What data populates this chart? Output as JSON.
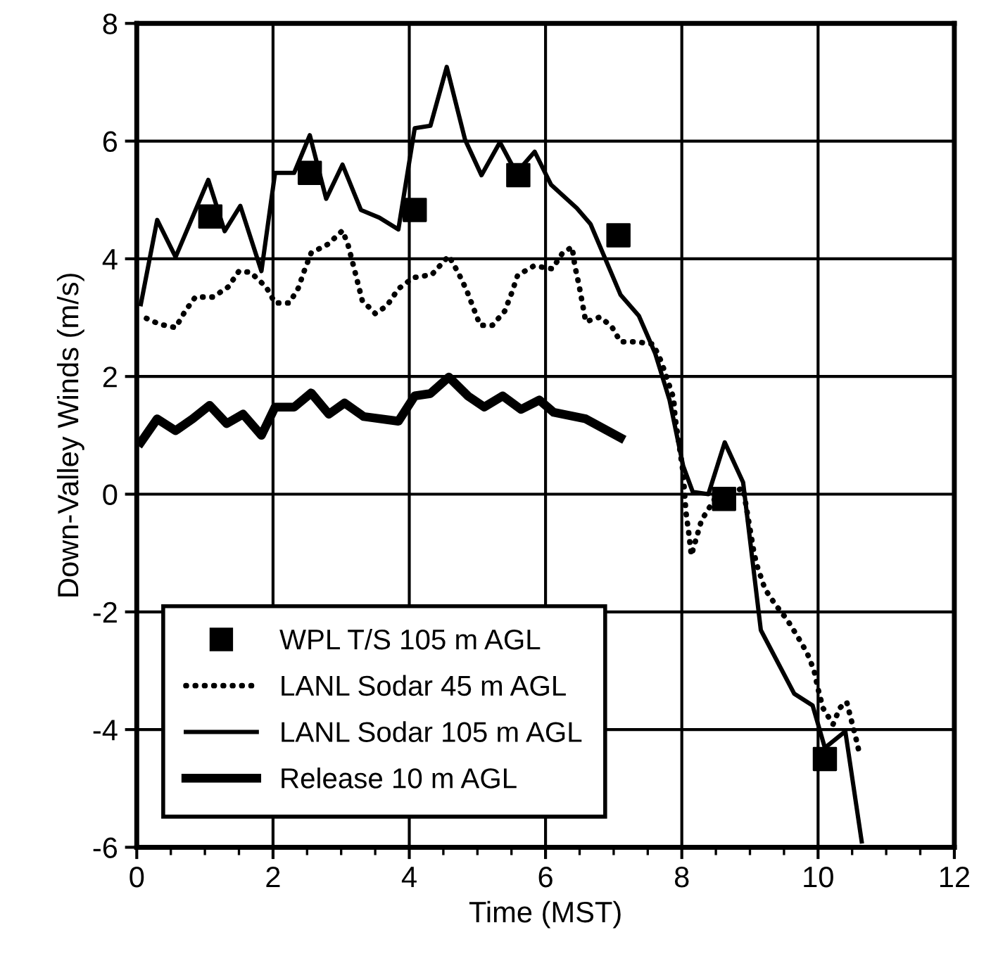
{
  "chart_data": {
    "type": "line",
    "xlabel": "Time (MST)",
    "ylabel": "Down-Valley Winds (m/s)",
    "xlim": [
      0,
      12
    ],
    "ylim": [
      -6,
      8
    ],
    "xticks": [
      0,
      {
        "value": 0.5,
        "label": null
      },
      2,
      {
        "value": 1,
        "label": null
      },
      {
        "value": 1.5,
        "label": null
      },
      {
        "value": 2.5,
        "label": null
      },
      {
        "value": 3,
        "label": null
      },
      {
        "value": 3.5,
        "label": null
      },
      4,
      {
        "value": 4.5,
        "label": null
      },
      {
        "value": 5,
        "label": null
      },
      {
        "value": 5.5,
        "label": null
      },
      6,
      {
        "value": 6.5,
        "label": null
      },
      {
        "value": 7,
        "label": null
      },
      {
        "value": 7.5,
        "label": null
      },
      8,
      {
        "value": 8.5,
        "label": null
      },
      {
        "value": 9,
        "label": null
      },
      {
        "value": 9.5,
        "label": null
      },
      10,
      {
        "value": 10.5,
        "label": null
      },
      {
        "value": 11,
        "label": null
      },
      {
        "value": 11.5,
        "label": null
      },
      12
    ],
    "yticks": [
      -6,
      -4,
      -2,
      0,
      2,
      4,
      6,
      8
    ],
    "grid": true,
    "legend": "bottom left",
    "series": [
      {
        "name": "WPL T/S 105 m AGL",
        "type": "scatter",
        "marker": "square",
        "color": "#000000",
        "x": [
          1.08,
          2.54,
          4.08,
          5.6,
          7.07,
          8.62,
          10.1
        ],
        "values": [
          4.72,
          5.46,
          4.83,
          5.42,
          4.4,
          -0.08,
          -4.5
        ]
      },
      {
        "name": "LANL Sodar 45 m AGL",
        "line_style": "dotted",
        "color": "#000000",
        "x": [
          0.06,
          0.33,
          0.57,
          0.71,
          0.86,
          1.12,
          1.34,
          1.5,
          1.67,
          1.9,
          2.03,
          2.24,
          2.37,
          2.46,
          2.56,
          2.81,
          3.02,
          3.1,
          3.17,
          3.24,
          3.31,
          3.5,
          3.67,
          3.84,
          4.06,
          4.33,
          4.58,
          4.72,
          4.84,
          4.94,
          5.04,
          5.22,
          5.4,
          5.5,
          5.59,
          5.83,
          6.1,
          6.25,
          6.39,
          6.43,
          6.49,
          6.54,
          6.59,
          6.8,
          6.97,
          7.1,
          7.33,
          7.58,
          7.7,
          7.88,
          7.9,
          8.02,
          8.06,
          8.1,
          8.14,
          8.21,
          8.29,
          8.5,
          8.9,
          9.06,
          9.1,
          9.22,
          9.37,
          9.55,
          9.7,
          9.84,
          9.94,
          10.0,
          10.07,
          10.22,
          10.32,
          10.42,
          10.49,
          10.55,
          10.62
        ],
        "values": [
          3.03,
          2.89,
          2.83,
          3.11,
          3.35,
          3.35,
          3.52,
          3.79,
          3.77,
          3.52,
          3.25,
          3.25,
          3.5,
          3.8,
          4.1,
          4.25,
          4.48,
          4.24,
          3.93,
          3.61,
          3.29,
          3.07,
          3.2,
          3.49,
          3.68,
          3.73,
          4.05,
          3.76,
          3.47,
          3.17,
          2.87,
          2.87,
          3.11,
          3.41,
          3.72,
          3.88,
          3.83,
          4.1,
          4.2,
          3.88,
          3.56,
          3.25,
          2.93,
          3.01,
          2.85,
          2.59,
          2.59,
          2.55,
          2.25,
          1.63,
          1.32,
          0.36,
          -0.3,
          -0.64,
          -1.04,
          -0.76,
          -0.44,
          -0.05,
          0.1,
          -1.0,
          -1.2,
          -1.61,
          -1.87,
          -2.14,
          -2.42,
          -2.7,
          -2.99,
          -3.31,
          -3.63,
          -3.91,
          -3.63,
          -3.53,
          -3.85,
          -4.12,
          -4.47
        ]
      },
      {
        "name": "LANL Sodar 105 m AGL",
        "line_style": "solid",
        "color": "#000000",
        "x": [
          0.06,
          0.3,
          0.57,
          1.05,
          1.29,
          1.52,
          1.83,
          2.03,
          2.31,
          2.54,
          2.78,
          3.02,
          3.29,
          3.56,
          3.84,
          4.08,
          4.31,
          4.55,
          4.82,
          5.06,
          5.33,
          5.57,
          5.84,
          6.08,
          6.46,
          6.66,
          7.1,
          7.37,
          7.61,
          7.82,
          8.02,
          8.16,
          8.39,
          8.63,
          8.9,
          9.16,
          9.65,
          9.92,
          10.1,
          10.4,
          10.64
        ],
        "values": [
          3.23,
          4.66,
          4.03,
          5.34,
          4.47,
          4.9,
          3.79,
          5.46,
          5.46,
          6.1,
          5.02,
          5.6,
          4.83,
          4.7,
          4.5,
          6.22,
          6.26,
          7.26,
          6.02,
          5.42,
          5.98,
          5.46,
          5.82,
          5.26,
          4.86,
          4.59,
          3.39,
          3.03,
          2.39,
          1.6,
          0.48,
          0.04,
          0.0,
          0.88,
          0.2,
          -2.31,
          -3.39,
          -3.59,
          -4.31,
          -4.03,
          -5.9
        ]
      },
      {
        "name": "Release 10 m AGL",
        "line_style": "solid",
        "color": "#000000",
        "x": [
          0.06,
          0.3,
          0.57,
          0.82,
          1.07,
          1.32,
          1.56,
          1.83,
          2.03,
          2.31,
          2.56,
          2.82,
          3.05,
          3.33,
          3.84,
          4.08,
          4.31,
          4.58,
          4.86,
          5.1,
          5.37,
          5.64,
          5.91,
          6.12,
          6.59,
          7.1
        ],
        "values": [
          0.88,
          1.28,
          1.08,
          1.28,
          1.51,
          1.2,
          1.36,
          1.0,
          1.48,
          1.48,
          1.72,
          1.36,
          1.55,
          1.32,
          1.24,
          1.67,
          1.71,
          1.99,
          1.67,
          1.48,
          1.67,
          1.44,
          1.6,
          1.39,
          1.28,
          0.96
        ]
      }
    ]
  }
}
